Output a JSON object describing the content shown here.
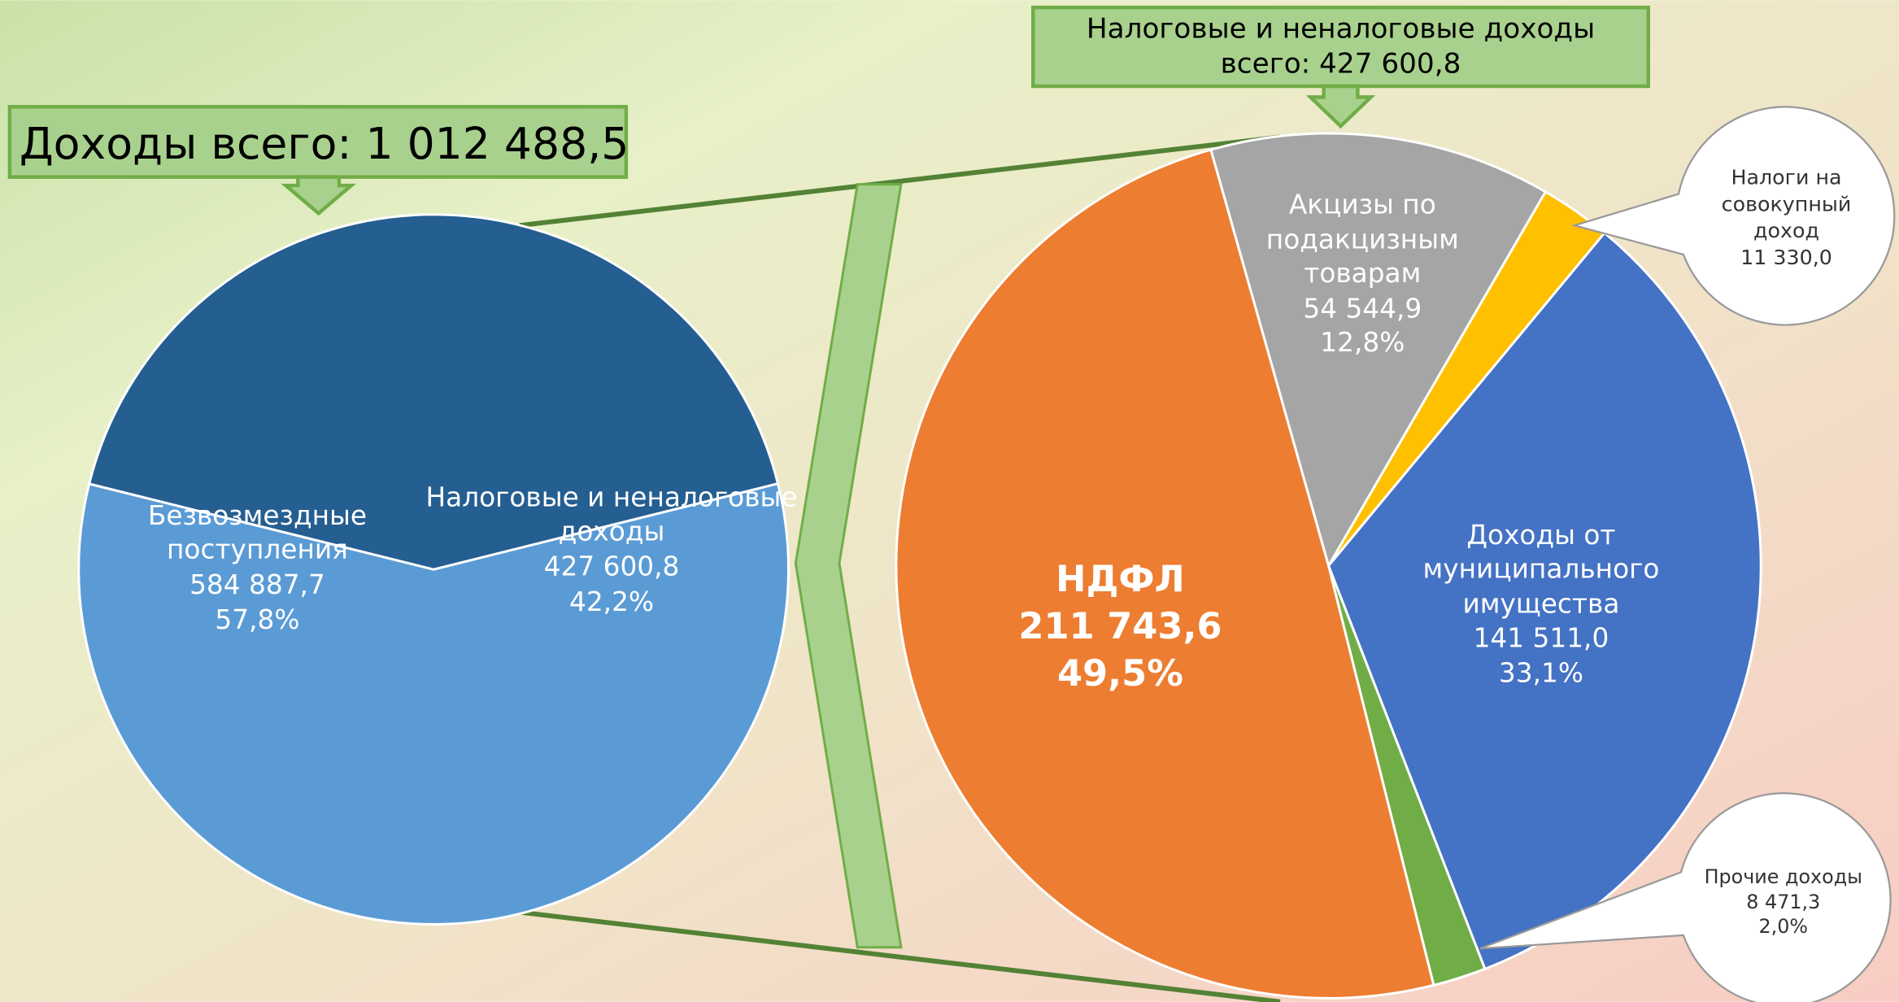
{
  "header": {
    "total": "Доходы всего: 1 012 488,5",
    "tax_total": "Налоговые и неналоговые доходы всего: 427 600,8"
  },
  "chart_data": [
    {
      "type": "pie",
      "categories": [
        "Безвозмездные поступления",
        "Налоговые и неналоговые доходы"
      ],
      "values": [
        584887.7,
        427600.8
      ],
      "value_labels": [
        "584 887,7",
        "427 600,8"
      ],
      "percent_labels": [
        "57,8%",
        "42,2%"
      ],
      "colors": [
        "#5b9bd5",
        "#255e91"
      ]
    },
    {
      "type": "pie",
      "categories": [
        "Акцизы по подакцизным товарам",
        "Налоги на совокупный доход",
        "Доходы от муниципального имущества",
        "Прочие доходы",
        "НДФЛ"
      ],
      "values": [
        54544.9,
        11330.0,
        141511.0,
        8471.3,
        211743.6
      ],
      "value_labels": [
        "54 544,9",
        "11 330,0",
        "141 511,0",
        "8 471,3",
        "211 743,6"
      ],
      "percent_labels": [
        "12,8%",
        null,
        "33,1%",
        "2,0%",
        "49,5%"
      ],
      "colors": [
        "#a5a5a5",
        "#ffc000",
        "#4472c4",
        "#70ad47",
        "#ed7d31"
      ]
    }
  ]
}
